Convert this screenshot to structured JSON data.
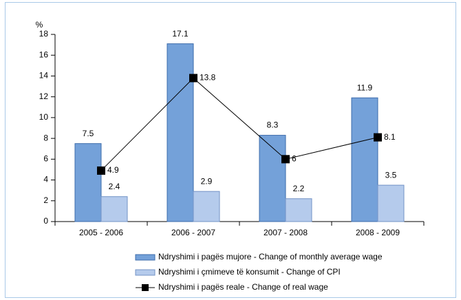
{
  "chart_data": {
    "type": "bar",
    "y_label": "%",
    "categories": [
      "2005 - 2006",
      "2006 - 2007",
      "2007 - 2008",
      "2008 - 2009"
    ],
    "series": [
      {
        "name": "Ndryshimi i pagës mujore - Change of monthly average wage",
        "type": "bar",
        "color": "#74a1d9",
        "values": [
          7.5,
          17.1,
          8.3,
          11.9
        ]
      },
      {
        "name": "Ndryshimi i çmimeve të konsumit - Change of CPI",
        "type": "bar",
        "color": "#b5cbec",
        "values": [
          2.4,
          2.9,
          2.2,
          3.5
        ]
      },
      {
        "name": "Ndryshimi i pagës reale - Change of real wage",
        "type": "line",
        "color": "#000000",
        "values": [
          4.9,
          13.8,
          6,
          8.1
        ]
      }
    ],
    "ylim": [
      0,
      18
    ],
    "yticks": [
      0,
      2,
      4,
      6,
      8,
      10,
      12,
      14,
      16,
      18
    ]
  }
}
